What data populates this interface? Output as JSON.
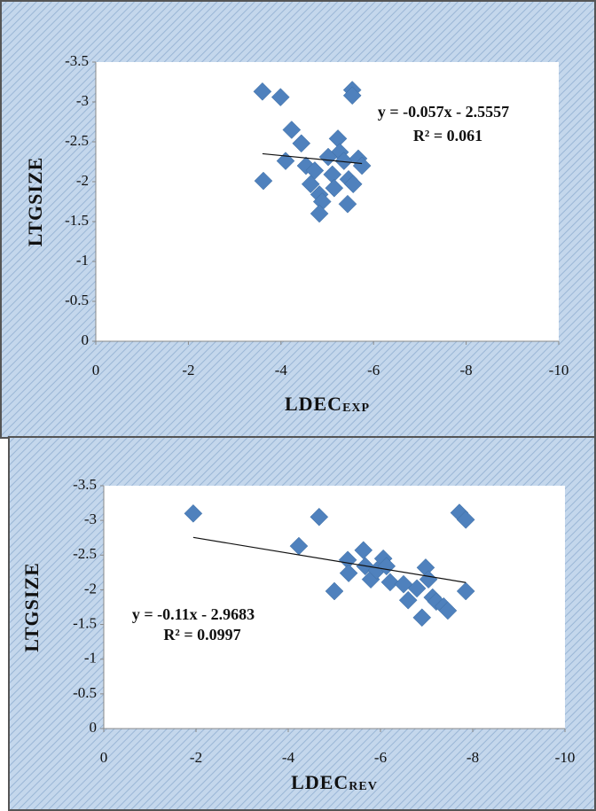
{
  "chart_data": [
    {
      "type": "scatter",
      "ylabel": "LTGSIZE",
      "xlabel": "LDEC",
      "xlabel_subscript": "EXP",
      "color": "#4f81bd",
      "xlim": [
        0,
        -10
      ],
      "xticks": [
        0,
        -2,
        -4,
        -6,
        -8,
        -10
      ],
      "ylim": [
        0,
        -3.5
      ],
      "yticks": [
        -3.5,
        -3,
        -2.5,
        -2,
        -1.5,
        -1,
        -0.5,
        0
      ],
      "x": [
        -3.6,
        -3.99,
        -5.54,
        -5.54,
        -4.23,
        -4.44,
        -4.1,
        -3.62,
        -4.54,
        -4.73,
        -4.64,
        -4.83,
        -4.89,
        -4.83,
        -5.11,
        -5.23,
        -5.27,
        -5.36,
        -5.46,
        -5.44,
        -5.56,
        -5.67,
        -5.75,
        -5.15,
        -5.02
      ],
      "values": [
        -3.13,
        -3.06,
        -3.15,
        -3.08,
        -2.65,
        -2.48,
        -2.26,
        -2.01,
        -2.2,
        -2.14,
        -1.97,
        -1.84,
        -1.75,
        -1.6,
        -2.09,
        -2.54,
        -2.37,
        -2.26,
        -2.03,
        -1.72,
        -1.97,
        -2.29,
        -2.2,
        -1.92,
        -2.31
      ],
      "trendline": {
        "slope": -0.057,
        "intercept": -2.5557,
        "equation": "y = -0.057x - 2.5557",
        "r2": "R² = 0.061"
      }
    },
    {
      "type": "scatter",
      "ylabel": "LTGSIZE",
      "xlabel": "LDEC",
      "xlabel_subscript": "REV",
      "color": "#4f81bd",
      "xlim": [
        0,
        -10
      ],
      "xticks": [
        0,
        -2,
        -4,
        -6,
        -8,
        -10
      ],
      "ylim": [
        0,
        -3.5
      ],
      "yticks": [
        -3.5,
        -3,
        -2.5,
        -2,
        -1.5,
        -1,
        -0.5,
        0
      ],
      "x": [
        -1.94,
        -4.67,
        -4.23,
        -5.29,
        -5.31,
        -5.0,
        -5.63,
        -5.67,
        -5.79,
        -5.92,
        -6.06,
        -6.13,
        -6.21,
        -6.5,
        -6.6,
        -6.79,
        -6.9,
        -6.98,
        -7.04,
        -7.13,
        -7.21,
        -7.37,
        -7.46,
        -7.71,
        -7.85,
        -7.85
      ],
      "values": [
        -3.1,
        -3.05,
        -2.63,
        -2.43,
        -2.24,
        -1.98,
        -2.57,
        -2.34,
        -2.15,
        -2.28,
        -2.45,
        -2.34,
        -2.11,
        -2.08,
        -1.85,
        -2.02,
        -1.6,
        -2.32,
        -2.15,
        -1.89,
        -1.83,
        -1.76,
        -1.7,
        -3.11,
        -3.01,
        -1.98
      ],
      "trendline": {
        "slope": -0.11,
        "intercept": -2.9683,
        "equation": "y = -0.11x - 2.9683",
        "r2": "R² = 0.0997"
      }
    }
  ]
}
